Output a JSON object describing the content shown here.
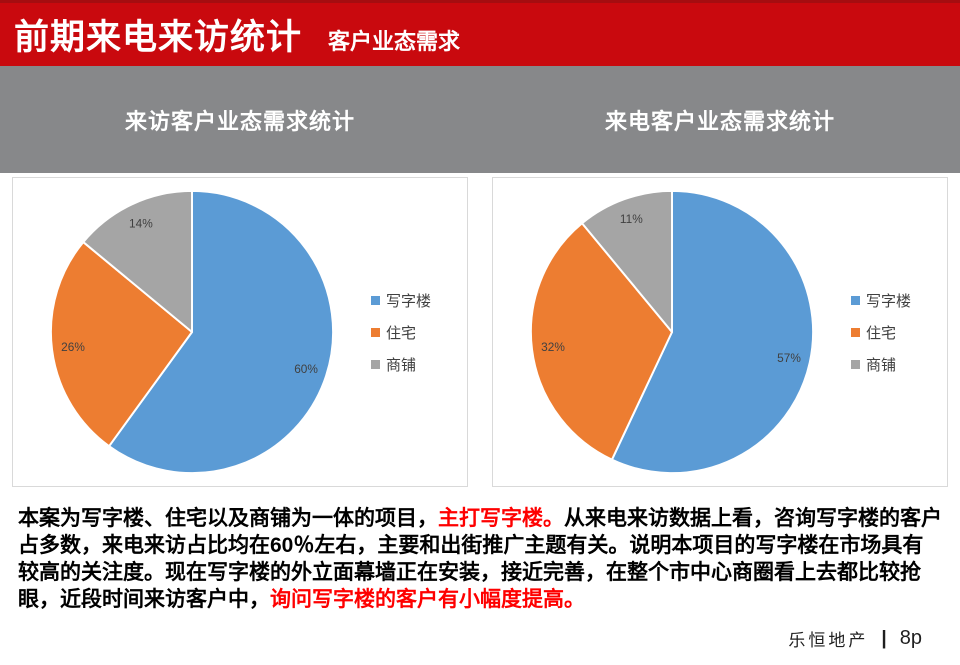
{
  "header": {
    "title": "前期来电来访统计",
    "subtitle": "客户业态需求",
    "bg_color": "#C9090E"
  },
  "band": {
    "left_title": "来访客户业态需求统计",
    "right_title": "来电客户业态需求统计",
    "bg_color": "#87888A"
  },
  "chart_data": [
    {
      "type": "pie",
      "title": "来访客户业态需求统计",
      "labels": [
        "写字楼",
        "住宅",
        "商铺"
      ],
      "values": [
        60,
        26,
        14
      ],
      "value_labels": [
        "60%",
        "26%",
        "14%"
      ],
      "colors": [
        "#5B9BD5",
        "#ED7D31",
        "#A5A5A5"
      ],
      "start_angle_deg": 0,
      "direction": "clockwise",
      "legend_position": "right",
      "slice_border_color": "#ffffff"
    },
    {
      "type": "pie",
      "title": "来电客户业态需求统计",
      "labels": [
        "写字楼",
        "住宅",
        "商铺"
      ],
      "values": [
        57,
        32,
        11
      ],
      "value_labels": [
        "57%",
        "32%",
        "11%"
      ],
      "colors": [
        "#5B9BD5",
        "#ED7D31",
        "#A5A5A5"
      ],
      "start_angle_deg": 0,
      "direction": "clockwise",
      "legend_position": "right",
      "slice_border_color": "#ffffff"
    }
  ],
  "paragraph": {
    "segments": [
      {
        "text": "本案为写字楼、住宅以及商铺为一体的项目，",
        "color": "black"
      },
      {
        "text": "主打写字楼。",
        "color": "red"
      },
      {
        "text": "从来电来访数据上看，咨询写字楼的客户占多数，来电来访占比均在60％左右，主要和出街推广主题有关。说明本项目的写字楼在市场具有较高的关注度。现在写字楼的外立面幕墙正在安装，接近完善，在整个市中心商圈看上去都比较抢眼，近段时间来访客户中，",
        "color": "black"
      },
      {
        "text": "询问写字楼的客户有小幅度提高。",
        "color": "red"
      }
    ]
  },
  "footer": {
    "company": "乐恒地产",
    "separator": "|",
    "page": "8p"
  }
}
